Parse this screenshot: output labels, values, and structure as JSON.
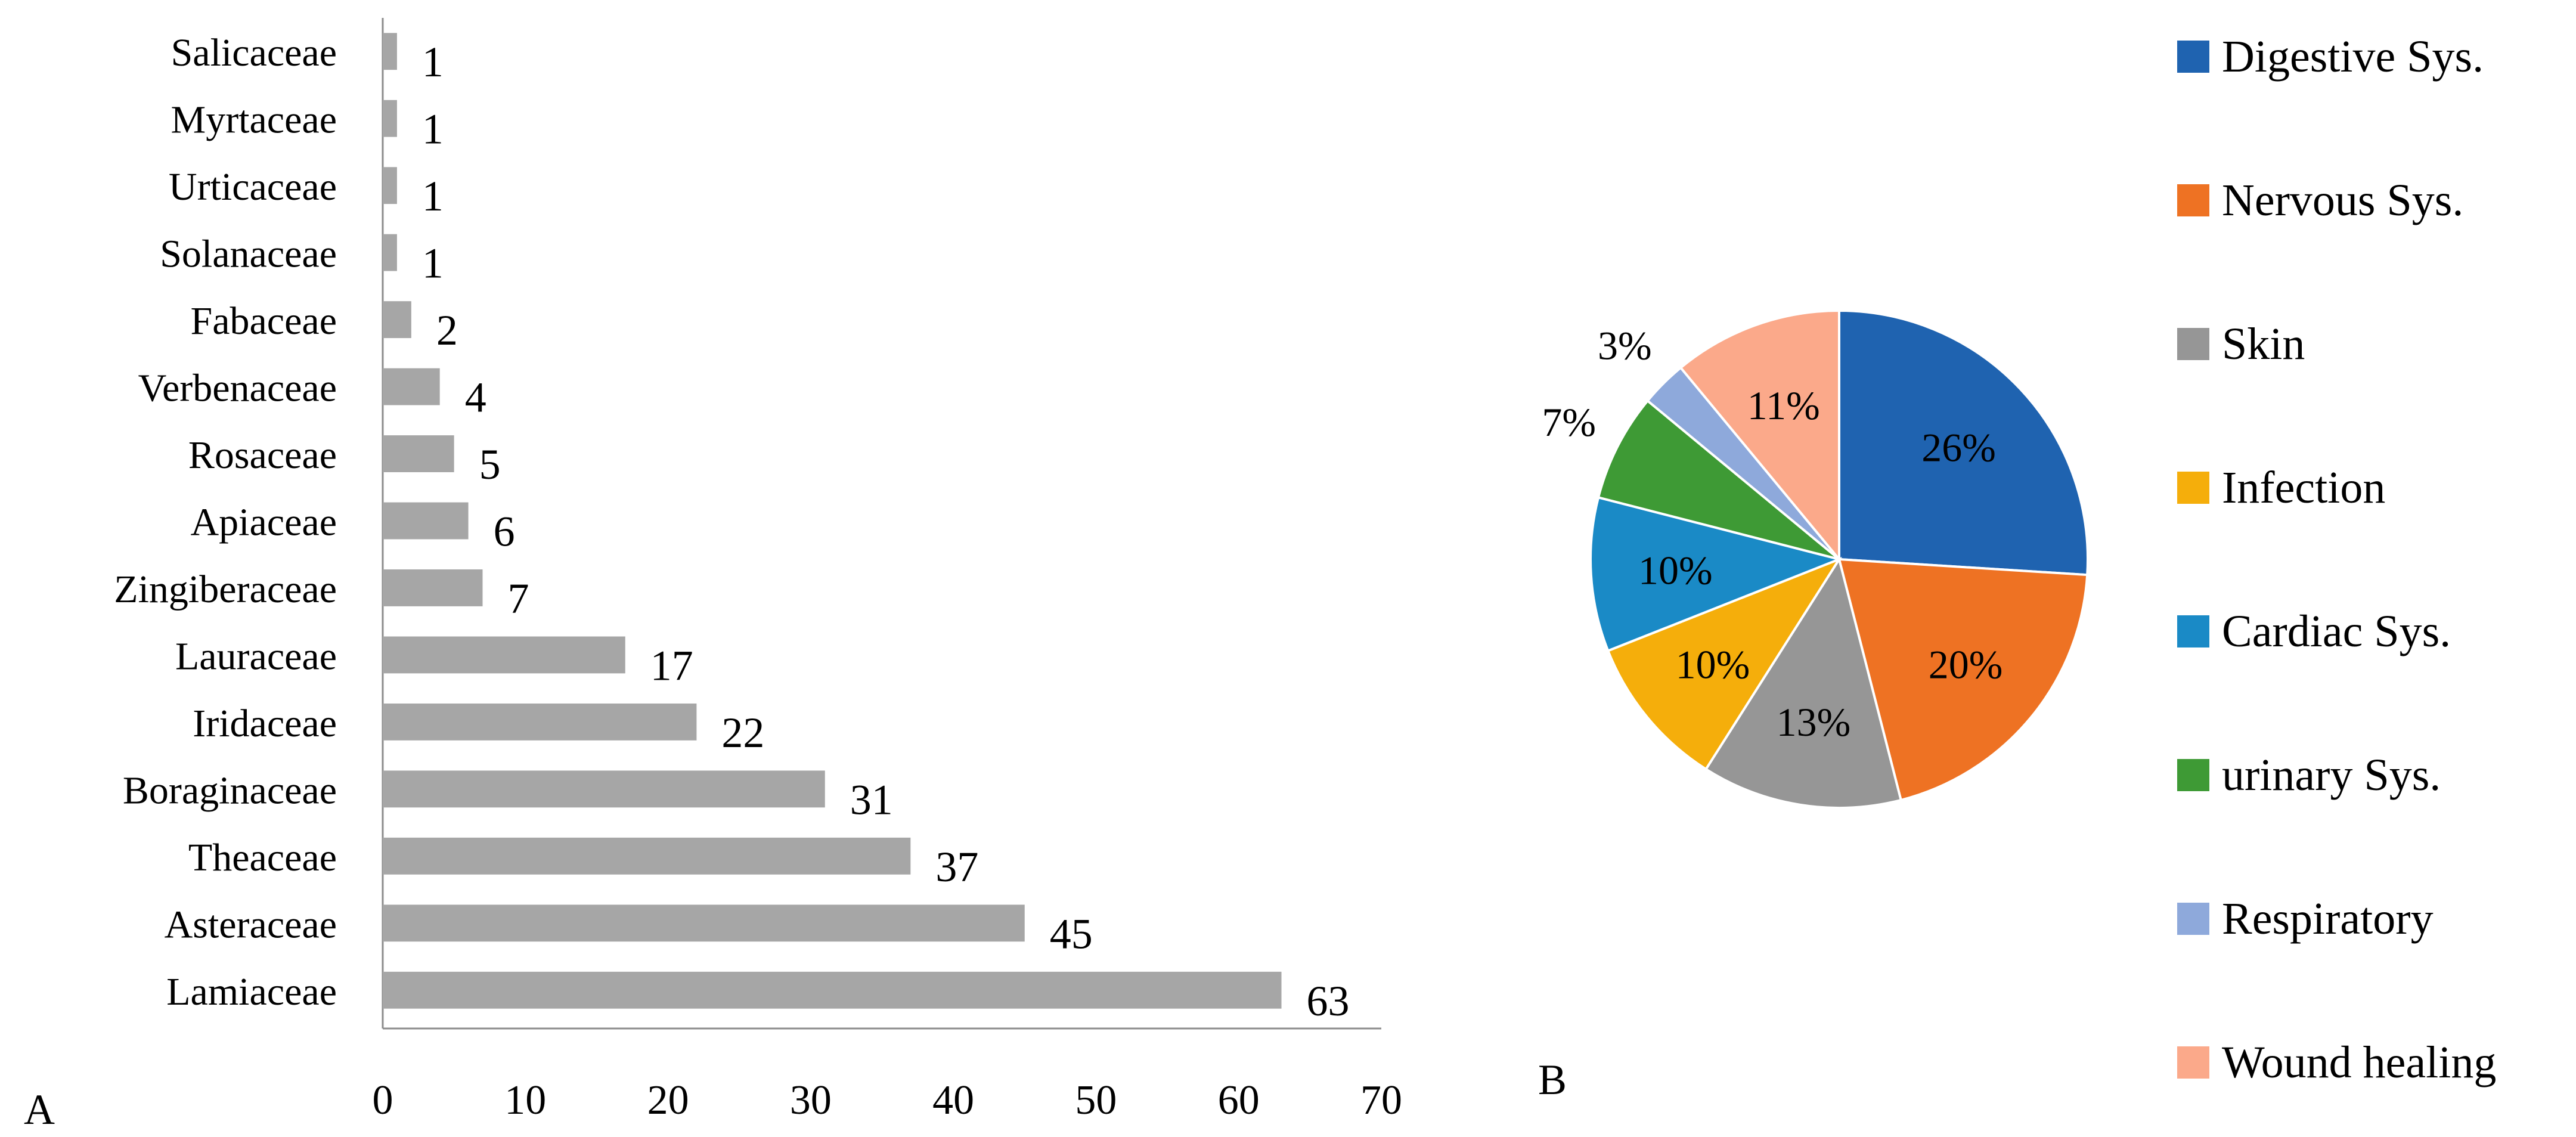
{
  "panels": {
    "a_label": "A",
    "b_label": "B"
  },
  "chart_data": [
    {
      "type": "bar",
      "orientation": "horizontal",
      "categories": [
        "Lamiaceae",
        "Asteraceae",
        "Theaceae",
        "Boraginaceae",
        "Iridaceae",
        "Lauraceae",
        "Zingiberaceae",
        "Apiaceae",
        "Rosaceae",
        "Verbenaceae",
        "Fabaceae",
        "Solanaceae",
        "Urticaceae",
        "Myrtaceae",
        "Salicaceae"
      ],
      "values": [
        63,
        45,
        37,
        31,
        22,
        17,
        7,
        6,
        5,
        4,
        2,
        1,
        1,
        1,
        1
      ],
      "xlim": [
        0,
        70
      ],
      "xticks": [
        0,
        10,
        20,
        30,
        40,
        50,
        60,
        70
      ],
      "bar_color": "#a6a6a6",
      "grid": false
    },
    {
      "type": "pie",
      "labels": [
        "Digestive Sys.",
        "Nervous Sys.",
        "Skin",
        "Infection",
        "Cardiac Sys.",
        "urinary Sys.",
        "Respiratory",
        "Wound healing"
      ],
      "values": [
        26,
        20,
        13,
        10,
        10,
        7,
        3,
        11
      ],
      "value_labels": [
        "26%",
        "20%",
        "13%",
        "10%",
        "10%",
        "7%",
        "3%",
        "11%"
      ],
      "colors": [
        "#1f63b0",
        "#ee7223",
        "#969696",
        "#f5ae0b",
        "#1a8ac6",
        "#3e9a35",
        "#8ea9db",
        "#fba98a"
      ],
      "legend_position": "right"
    }
  ]
}
